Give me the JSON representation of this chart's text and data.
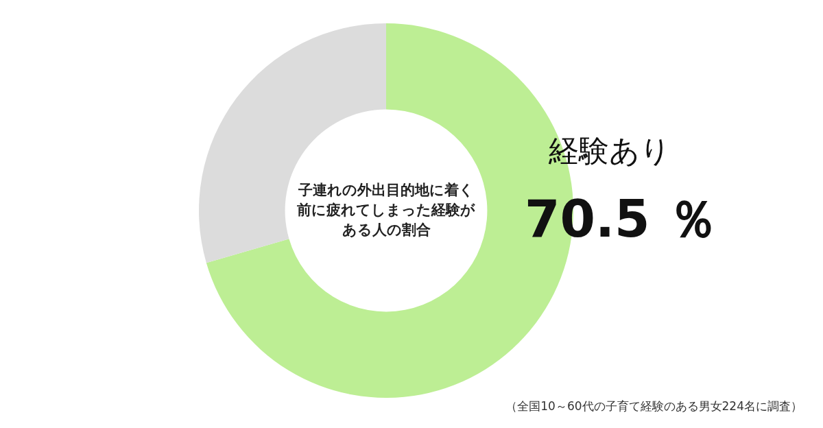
{
  "chart_data": {
    "type": "donut",
    "title": "子連れの外出目的地に着く前に疲れてしまった経験がある人の割合",
    "categories": [
      "経験あり",
      null
    ],
    "values": [
      70.5,
      29.5
    ],
    "colors": [
      "#bdee94",
      "#dcdcdc"
    ],
    "value_labels": [
      "70.5 ％",
      null
    ],
    "legend": false,
    "annotations": [
      "（全国10～60代の子育て経験のある男女224名に調査）"
    ]
  }
}
